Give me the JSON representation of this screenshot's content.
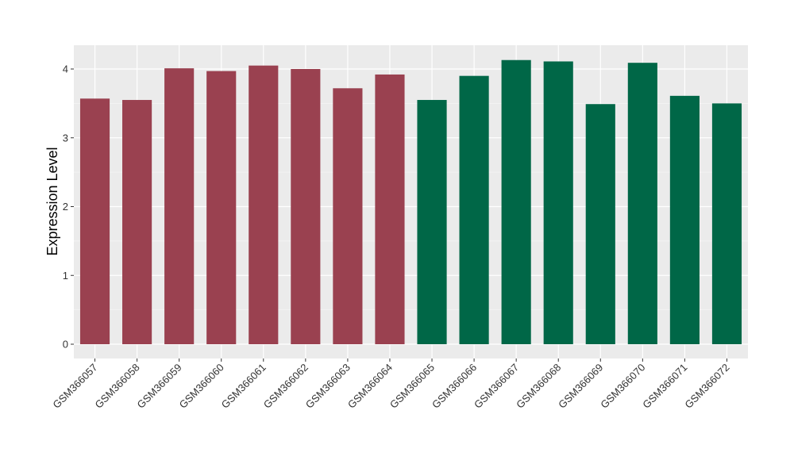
{
  "chart_data": {
    "type": "bar",
    "title": "",
    "xlabel": "",
    "ylabel": "Expression Level",
    "ylim": [
      -0.2,
      4.35
    ],
    "yticks": [
      0,
      1,
      2,
      3,
      4
    ],
    "grid": true,
    "panel_background": "#ebebeb",
    "colors": {
      "group1": "#9a4150",
      "group2": "#006747"
    },
    "categories": [
      "GSM366057",
      "GSM366058",
      "GSM366059",
      "GSM366060",
      "GSM366061",
      "GSM366062",
      "GSM366063",
      "GSM366064",
      "GSM366065",
      "GSM366066",
      "GSM366067",
      "GSM366068",
      "GSM366069",
      "GSM366070",
      "GSM366071",
      "GSM366072"
    ],
    "values": [
      3.57,
      3.55,
      4.01,
      3.97,
      4.05,
      4.0,
      3.72,
      3.92,
      3.55,
      3.9,
      4.13,
      4.11,
      3.49,
      4.09,
      3.61,
      3.5
    ],
    "bar_groups": [
      "group1",
      "group1",
      "group1",
      "group1",
      "group1",
      "group1",
      "group1",
      "group1",
      "group2",
      "group2",
      "group2",
      "group2",
      "group2",
      "group2",
      "group2",
      "group2"
    ]
  }
}
